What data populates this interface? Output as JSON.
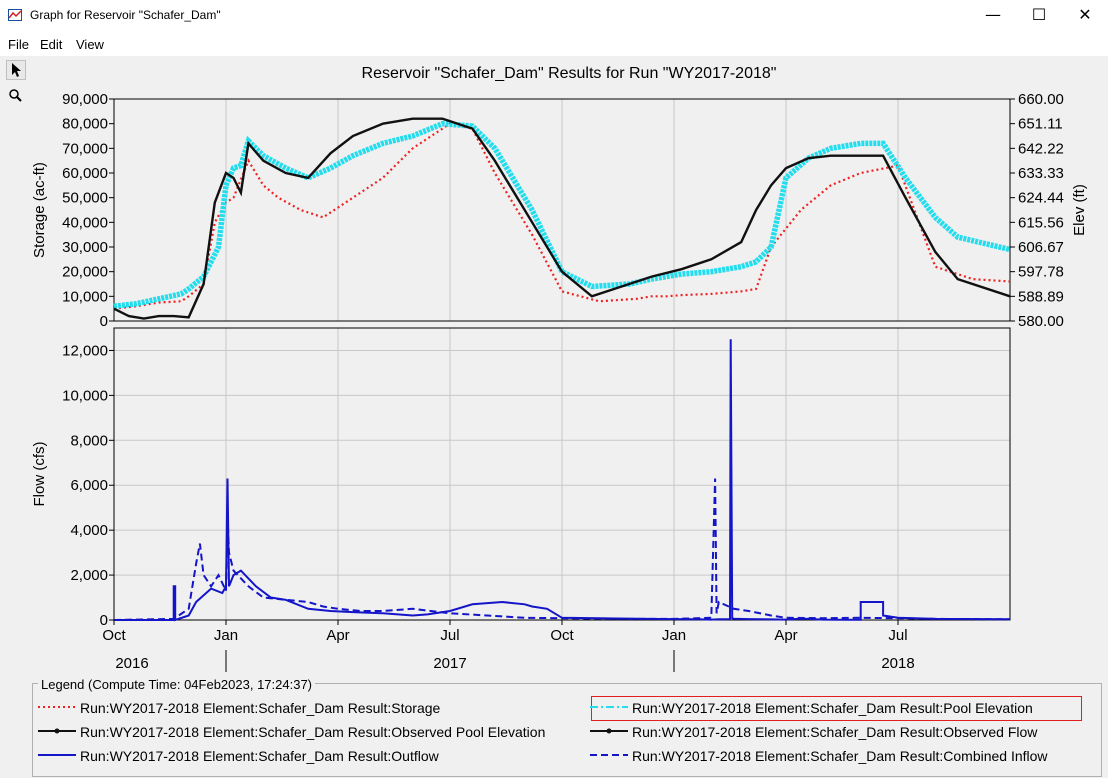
{
  "window": {
    "title": "Graph for Reservoir \"Schafer_Dam\""
  },
  "menu": {
    "items": [
      "File",
      "Edit",
      "View"
    ]
  },
  "chart_data": {
    "type": "line",
    "title": "Reservoir \"Schafer_Dam\" Results for Run \"WY2017-2018\"",
    "x_ticks": [
      "Oct",
      "Jan",
      "Apr",
      "Jul",
      "Oct",
      "Jan",
      "Apr",
      "Jul"
    ],
    "year_labels": [
      "2016",
      "2017",
      "2018"
    ],
    "top_panel": {
      "ylabel_left": "Storage (ac-ft)",
      "ylabel_right": "Elev (ft)",
      "ylim_left": [
        0,
        90000
      ],
      "ylim_right": [
        580.0,
        660.0
      ],
      "left_ticks": [
        "0",
        "10,000",
        "20,000",
        "30,000",
        "40,000",
        "50,000",
        "60,000",
        "70,000",
        "80,000",
        "90,000"
      ],
      "right_ticks": [
        "580.00",
        "588.89",
        "597.78",
        "606.67",
        "615.56",
        "624.44",
        "633.33",
        "642.22",
        "651.11",
        "660.00"
      ],
      "series": [
        {
          "name": "Run:WY2017-2018 Element:Schafer_Dam Result:Storage",
          "axis": "left",
          "color": "#ee2222",
          "style": "dotted",
          "x": [
            0,
            0.3,
            0.6,
            0.9,
            1.0,
            1.2,
            1.35,
            1.5,
            1.6,
            1.8,
            2.0,
            2.2,
            2.5,
            2.8,
            3.2,
            3.6,
            4.0,
            4.5,
            4.8,
            5.1,
            5.6,
            6.0,
            6.5,
            7.0,
            7.2,
            7.4,
            7.6,
            8.0,
            8.4,
            8.6,
            8.8,
            9.2,
            9.6,
            10.0,
            10.5,
            11.0,
            11.5,
            12.0
          ],
          "y": [
            5000,
            6000,
            7500,
            8000,
            10000,
            15000,
            40000,
            48000,
            50000,
            65000,
            55000,
            50000,
            45000,
            42000,
            50000,
            58000,
            70000,
            80000,
            78000,
            60000,
            35000,
            12000,
            8000,
            9000,
            10000,
            10000,
            10500,
            11000,
            12000,
            13000,
            30000,
            45000,
            55000,
            60000,
            63000,
            22000,
            17000,
            16000
          ]
        },
        {
          "name": "Run:WY2017-2018 Element:Schafer_Dam Result:Pool Elevation",
          "axis": "left",
          "color": "#22dded",
          "style": "thick",
          "x": [
            0,
            0.3,
            0.6,
            0.9,
            1.0,
            1.2,
            1.4,
            1.5,
            1.6,
            1.7,
            1.8,
            2.0,
            2.3,
            2.6,
            2.9,
            3.2,
            3.6,
            4.0,
            4.4,
            4.8,
            5.1,
            5.6,
            6.0,
            6.4,
            6.9,
            7.2,
            7.6,
            8.0,
            8.4,
            8.6,
            8.8,
            9.0,
            9.3,
            9.6,
            10.0,
            10.3,
            10.6,
            11.0,
            11.3,
            12.0
          ],
          "y": [
            6000,
            7000,
            9000,
            11000,
            13000,
            18000,
            30000,
            55000,
            62000,
            63000,
            73000,
            67000,
            62000,
            58000,
            62000,
            67000,
            72000,
            75000,
            80000,
            79000,
            70000,
            45000,
            20000,
            14000,
            15000,
            17000,
            19000,
            20000,
            22000,
            24000,
            30000,
            58000,
            66000,
            70000,
            72000,
            72000,
            58000,
            42000,
            34000,
            29000
          ]
        },
        {
          "name": "Run:WY2017-2018 Element:Schafer_Dam Result:Observed Pool Elevation",
          "axis": "left",
          "color": "#111111",
          "style": "solid-marker",
          "x": [
            0,
            0.2,
            0.4,
            0.6,
            0.8,
            1.0,
            1.2,
            1.35,
            1.5,
            1.6,
            1.7,
            1.8,
            2.0,
            2.3,
            2.6,
            2.9,
            3.2,
            3.6,
            4.0,
            4.4,
            4.8,
            5.1,
            5.6,
            6.0,
            6.4,
            6.9,
            7.2,
            7.6,
            8.0,
            8.4,
            8.6,
            8.8,
            9.0,
            9.3,
            9.6,
            10.0,
            10.3,
            10.6,
            11.0,
            11.3,
            12.0
          ],
          "y": [
            5000,
            2000,
            1000,
            2000,
            2000,
            1500,
            15000,
            48000,
            60000,
            58000,
            52000,
            72000,
            65000,
            60000,
            58000,
            68000,
            75000,
            80000,
            82000,
            82000,
            78000,
            65000,
            40000,
            20000,
            10000,
            15000,
            18000,
            21000,
            25000,
            32000,
            45000,
            55000,
            62000,
            66000,
            67000,
            67000,
            67000,
            50000,
            28000,
            17000,
            10000
          ]
        },
        {
          "name": "Run:WY2017-2018 Element:Schafer_Dam Result:Observed Flow",
          "axis": "none",
          "color": "#111111",
          "style": "legend-only",
          "x": [],
          "y": []
        }
      ]
    },
    "bottom_panel": {
      "ylabel": "Flow (cfs)",
      "ylim": [
        0,
        13000
      ],
      "ticks": [
        "0",
        "2,000",
        "4,000",
        "6,000",
        "8,000",
        "10,000",
        "12,000"
      ],
      "series": [
        {
          "name": "Run:WY2017-2018 Element:Schafer_Dam Result:Outflow",
          "color": "#1414c8",
          "style": "solid",
          "x": [
            0,
            0.8,
            0.8,
            0.82,
            0.82,
            1.0,
            1.1,
            1.3,
            1.45,
            1.5,
            1.52,
            1.54,
            1.6,
            1.7,
            1.9,
            2.1,
            2.3,
            2.6,
            2.9,
            3.2,
            3.6,
            4.0,
            4.2,
            4.5,
            4.8,
            5.2,
            5.5,
            5.6,
            5.8,
            6.0,
            6.5,
            7.0,
            7.5,
            7.8,
            8.0,
            8.1,
            8.25,
            8.26,
            8.28,
            8.3,
            8.5,
            8.7,
            9.0,
            9.1,
            9.2,
            9.3,
            9.4,
            9.5,
            9.8,
            10.0,
            10.0,
            10.3,
            10.3,
            10.5,
            11.0,
            12.0
          ],
          "y": [
            0,
            0,
            1500,
            1500,
            0,
            200,
            800,
            1400,
            1200,
            1500,
            6300,
            1500,
            2000,
            2200,
            1500,
            1000,
            900,
            500,
            400,
            350,
            300,
            200,
            250,
            400,
            700,
            800,
            700,
            600,
            500,
            100,
            80,
            60,
            40,
            30,
            20,
            30,
            40,
            12500,
            80,
            60,
            40,
            30,
            20,
            40,
            60,
            50,
            30,
            20,
            10,
            10,
            800,
            800,
            200,
            100,
            50,
            30
          ]
        },
        {
          "name": "Run:WY2017-2018 Element:Schafer_Dam Result:Combined Inflow",
          "color": "#1414c8",
          "style": "dashed",
          "x": [
            0,
            0.8,
            1.0,
            1.1,
            1.15,
            1.2,
            1.3,
            1.4,
            1.5,
            1.52,
            1.54,
            1.6,
            1.8,
            2.0,
            2.3,
            2.6,
            2.8,
            3.0,
            3.3,
            3.6,
            4.0,
            4.5,
            5.0,
            5.5,
            6.0,
            6.5,
            7.0,
            7.5,
            8.0,
            8.05,
            8.07,
            8.1,
            8.3,
            8.5,
            8.8,
            9.0,
            9.5,
            10.0,
            10.5,
            11.0,
            12.0
          ],
          "y": [
            0,
            50,
            500,
            2500,
            3400,
            2000,
            1500,
            2000,
            1300,
            4700,
            3000,
            2200,
            1500,
            1000,
            900,
            800,
            600,
            500,
            400,
            400,
            500,
            300,
            200,
            100,
            80,
            60,
            50,
            50,
            100,
            6300,
            300,
            800,
            500,
            400,
            200,
            100,
            80,
            100,
            80,
            50,
            30
          ]
        }
      ]
    },
    "legend": {
      "title": "Legend (Compute Time: 04Feb2023, 17:24:37)",
      "placement": "bottom",
      "items": [
        "Run:WY2017-2018 Element:Schafer_Dam Result:Storage",
        "Run:WY2017-2018 Element:Schafer_Dam Result:Pool Elevation",
        "Run:WY2017-2018 Element:Schafer_Dam Result:Observed Pool Elevation",
        "Run:WY2017-2018 Element:Schafer_Dam Result:Observed Flow",
        "Run:WY2017-2018 Element:Schafer_Dam Result:Outflow",
        "Run:WY2017-2018 Element:Schafer_Dam Result:Combined Inflow"
      ]
    },
    "grid": true
  }
}
